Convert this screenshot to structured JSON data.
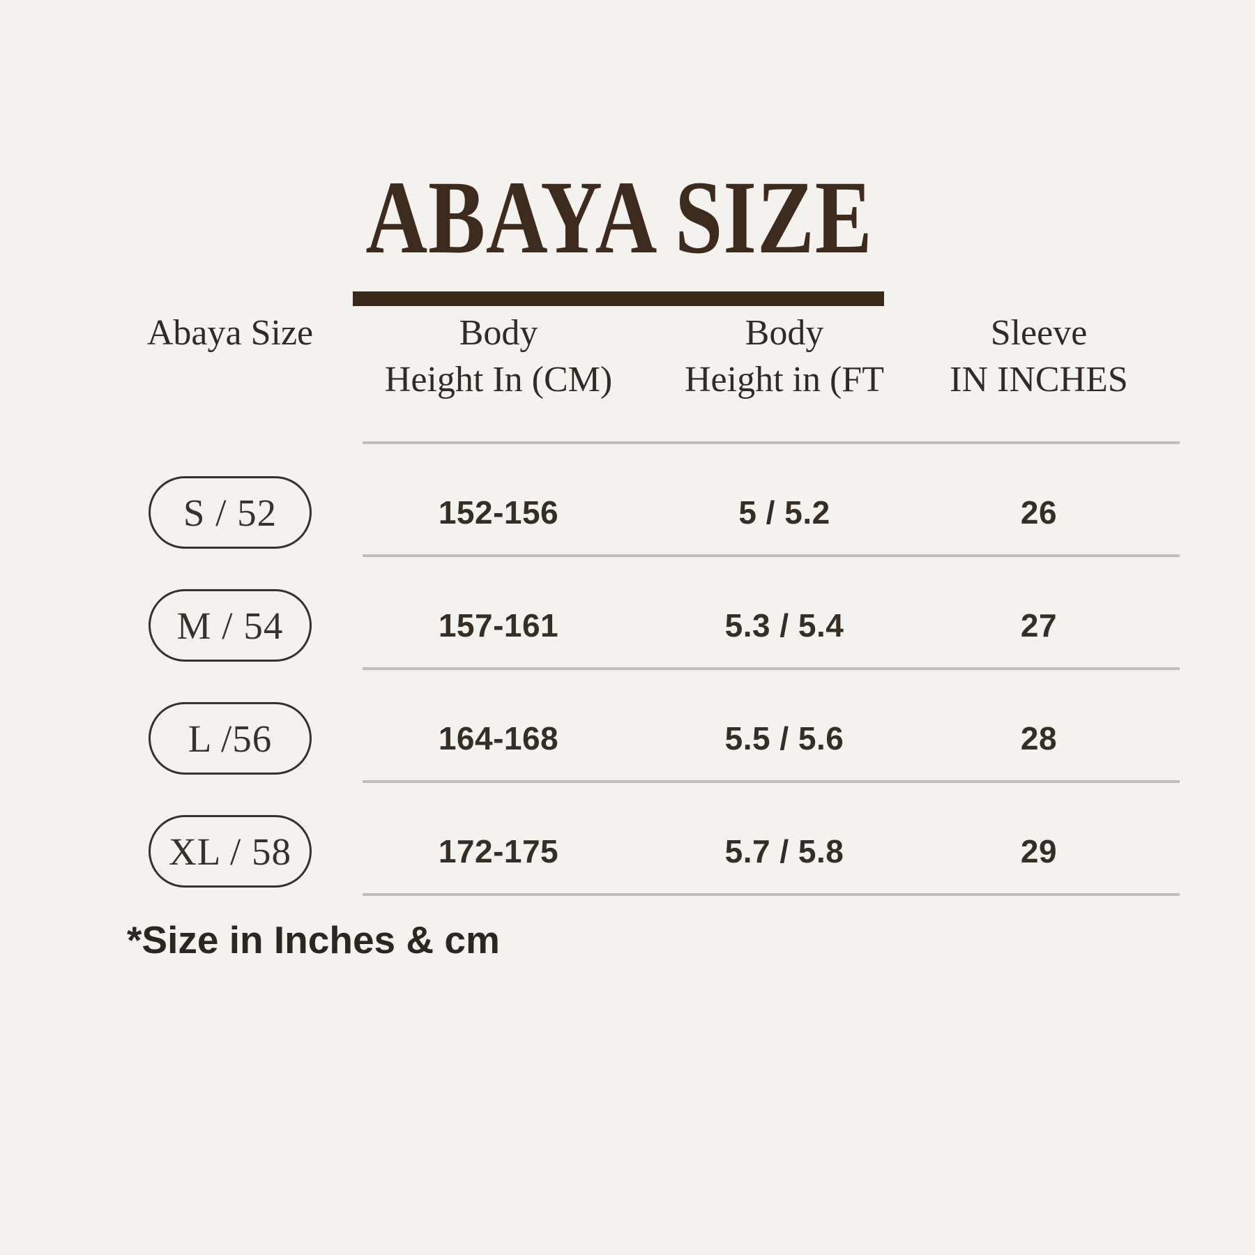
{
  "title": "ABAYA SIZE",
  "footnote": "*Size in Inches & cm",
  "colors": {
    "background": "#f4f2ef",
    "title_brown": "#3f2b1d",
    "underline_brown": "#3a2819",
    "header_text": "#322b25",
    "badge_outline": "#38302a",
    "number_text": "#352e27",
    "separator_gray": "#bfbeba"
  },
  "table": {
    "columns": [
      {
        "line1": "",
        "line2": "Abaya Size"
      },
      {
        "line1": "Body",
        "line2": "Height In (CM)"
      },
      {
        "line1": "Body",
        "line2": "Height in (FT"
      },
      {
        "line1": "Sleeve",
        "line2": "IN INCHES"
      }
    ],
    "rows": [
      {
        "size": "S / 52",
        "height_cm": "152-156",
        "height_ft": "5 / 5.2",
        "sleeve_in": "26"
      },
      {
        "size": "M / 54",
        "height_cm": "157-161",
        "height_ft": "5.3 / 5.4",
        "sleeve_in": "27"
      },
      {
        "size": "L /56",
        "height_cm": "164-168",
        "height_ft": "5.5 / 5.6",
        "sleeve_in": "28"
      },
      {
        "size": "XL / 58",
        "height_cm": "172-175",
        "height_ft": "5.7 / 5.8",
        "sleeve_in": "29"
      }
    ]
  },
  "chart_data": {
    "type": "table",
    "title": "ABAYA SIZE",
    "columns": [
      "Abaya Size",
      "Body Height In (CM)",
      "Body Height in (FT",
      "Sleeve IN INCHES"
    ],
    "rows": [
      [
        "S / 52",
        "152-156",
        "5 / 5.2",
        "26"
      ],
      [
        "M / 54",
        "157-161",
        "5.3 / 5.4",
        "27"
      ],
      [
        "L /56",
        "164-168",
        "5.5 / 5.6",
        "28"
      ],
      [
        "XL / 58",
        "172-175",
        "5.7 / 5.8",
        "29"
      ]
    ],
    "footnote": "*Size in Inches & cm"
  }
}
